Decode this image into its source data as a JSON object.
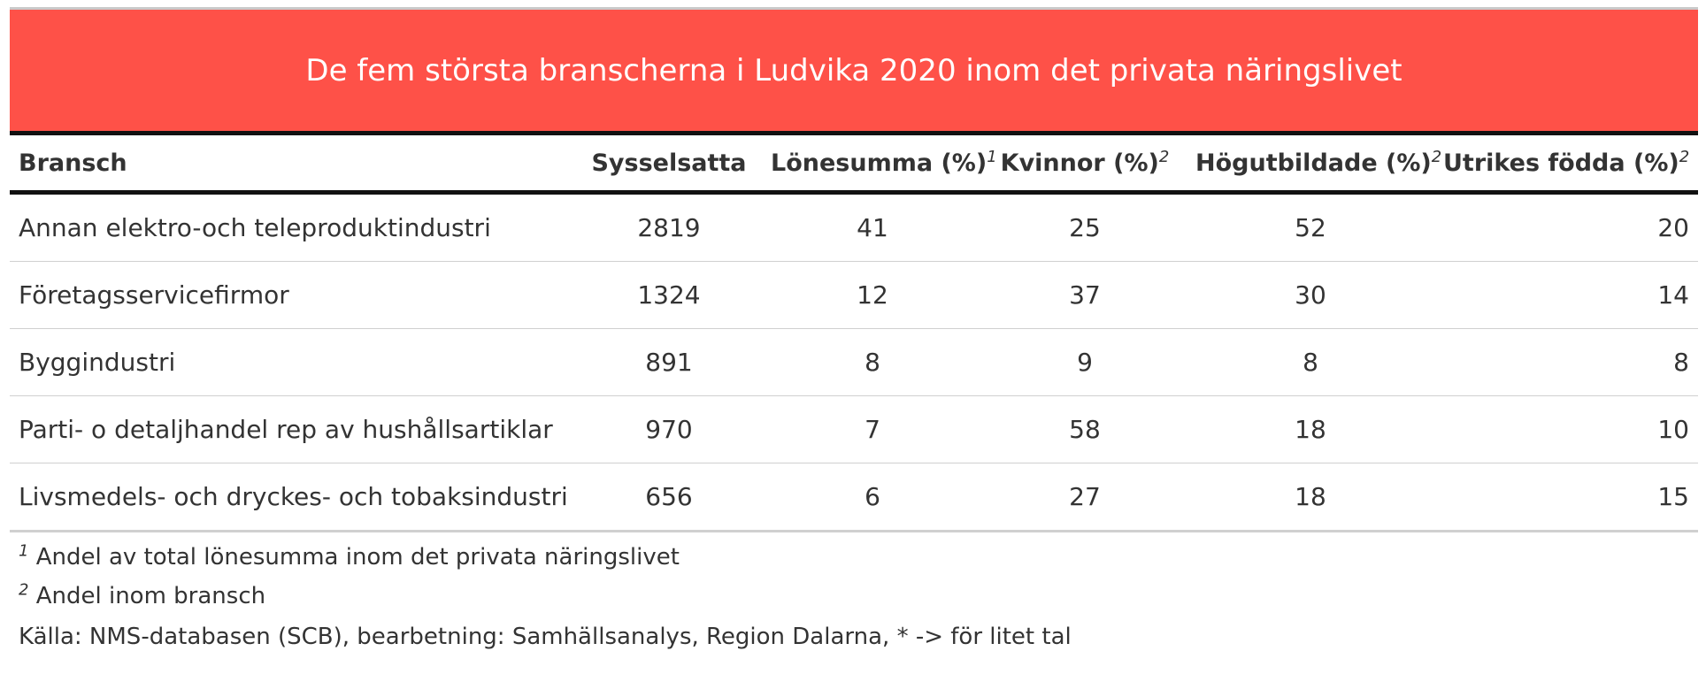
{
  "title": "De fem största branscherna i Ludvika 2020 inom det privata näringslivet",
  "colors": {
    "title_background": "#fe5148",
    "title_text": "#ffffff",
    "text": "#333333",
    "rule": "#111111"
  },
  "table": {
    "headers": {
      "bransch": "Bransch",
      "sysselsatta": "Sysselsatta",
      "lonesumma": "Lönesumma (%)",
      "lonesumma_sup": "1",
      "kvinnor": "Kvinnor (%)",
      "kvinnor_sup": "2",
      "hogutbildade": "Högutbildade (%)",
      "hogutbildade_sup": "2",
      "utrikes": "Utrikes födda (%)",
      "utrikes_sup": "2"
    },
    "rows": [
      {
        "bransch": "Annan elektro-och teleproduktindustri",
        "sysselsatta": "2819",
        "lonesumma": "41",
        "kvinnor": "25",
        "hogutbildade": "52",
        "utrikes": "20"
      },
      {
        "bransch": "Företagsservicefirmor",
        "sysselsatta": "1324",
        "lonesumma": "12",
        "kvinnor": "37",
        "hogutbildade": "30",
        "utrikes": "14"
      },
      {
        "bransch": "Byggindustri",
        "sysselsatta": "891",
        "lonesumma": "8",
        "kvinnor": "9",
        "hogutbildade": "8",
        "utrikes": "8"
      },
      {
        "bransch": "Parti- o detaljhandel rep av hushållsartiklar",
        "sysselsatta": "970",
        "lonesumma": "7",
        "kvinnor": "58",
        "hogutbildade": "18",
        "utrikes": "10"
      },
      {
        "bransch": "Livsmedels- och dryckes- och tobaksindustri",
        "sysselsatta": "656",
        "lonesumma": "6",
        "kvinnor": "27",
        "hogutbildade": "18",
        "utrikes": "15"
      }
    ]
  },
  "footnotes": [
    {
      "marker": "1",
      "text": "Andel av total lönesumma inom det privata näringslivet"
    },
    {
      "marker": "2",
      "text": "Andel inom bransch"
    }
  ],
  "source": "Källa: NMS-databasen (SCB), bearbetning: Samhällsanalys, Region Dalarna, * -> för litet tal"
}
